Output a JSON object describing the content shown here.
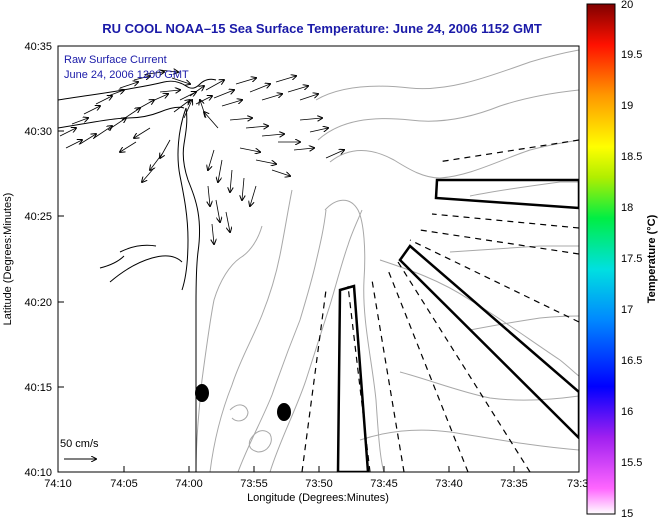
{
  "title": "RU COOL  NOAA–15  Sea Surface Temperature:  June 24, 2006 1152 GMT",
  "legend": {
    "line1": "Raw Surface Current",
    "line2": "June 24, 2006 1200 GMT"
  },
  "scale_label": "50 cm/s",
  "axes": {
    "xlabel": "Longitude (Degrees:Minutes)",
    "ylabel": "Latitude (Degrees:Minutes)",
    "x_ticks": [
      "74:10",
      "74:05",
      "74:00",
      "73:55",
      "73:50",
      "73:45",
      "73:40",
      "73:35",
      "73:3"
    ],
    "y_ticks": [
      "40:35",
      "40:30",
      "40:25",
      "40:20",
      "40:15",
      "40:10"
    ]
  },
  "colorbar": {
    "label": "Temperature (°C)",
    "ticks": [
      "20",
      "19.5",
      "19",
      "18.5",
      "18",
      "17.5",
      "17",
      "16.5",
      "16",
      "15.5",
      "15"
    ],
    "range": [
      15,
      20
    ]
  },
  "colors": {
    "title": "#1a1aa8",
    "land": "#ffffff",
    "contour": "#a8a8a8",
    "features": "#000000"
  }
}
